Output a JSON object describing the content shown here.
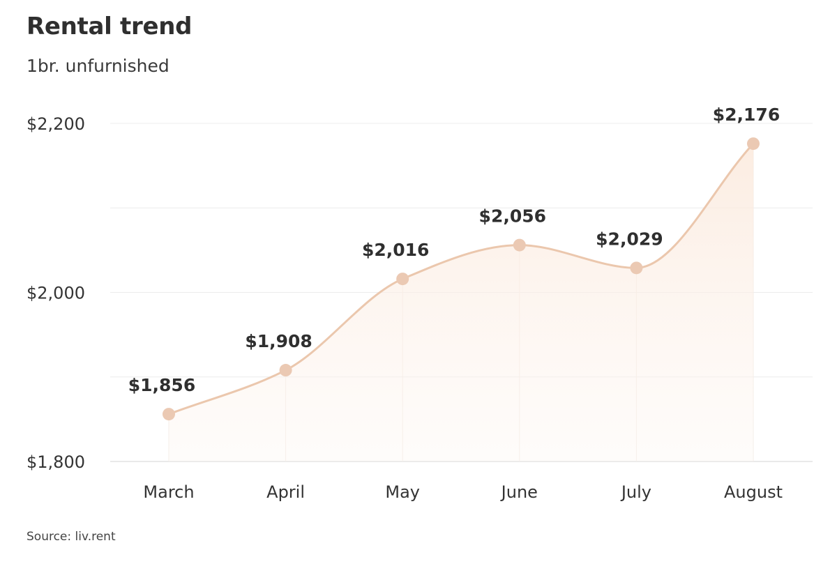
{
  "header": {
    "title": "Rental trend",
    "subtitle": "1br. unfurnished"
  },
  "footer": {
    "source": "Source: liv.rent"
  },
  "chart_data": {
    "type": "line",
    "title": "Rental trend",
    "subtitle": "1br. unfurnished",
    "xlabel": "",
    "ylabel": "",
    "categories": [
      "March",
      "April",
      "May",
      "June",
      "July",
      "August"
    ],
    "series": [
      {
        "values": [
          1856,
          1908,
          2016,
          2056,
          2029,
          2176
        ]
      }
    ],
    "data_labels": [
      "$1,856",
      "$1,908",
      "$2,016",
      "$2,056",
      "$2,029",
      "$2,176"
    ],
    "ylim": [
      1800,
      2200
    ],
    "yticks": [
      1800,
      2000,
      2200
    ],
    "ytick_labels": [
      "$1,800",
      "$2,000",
      "$2,200"
    ],
    "grid": true,
    "smooth": true,
    "area_fill": true,
    "line_color": "#ebc7ad",
    "marker_color": "#ebc9b3",
    "fill_color": "#fbeee5",
    "grid_color": "#ececec"
  }
}
